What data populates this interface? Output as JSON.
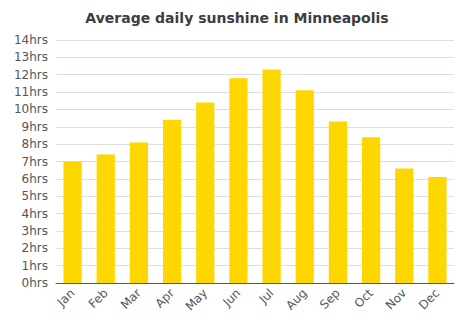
{
  "chart_data": {
    "type": "bar",
    "title": "Average daily sunshine in Minneapolis",
    "categories": [
      "Jan",
      "Feb",
      "Mar",
      "Apr",
      "May",
      "Jun",
      "Jul",
      "Aug",
      "Sep",
      "Oct",
      "Nov",
      "Dec"
    ],
    "values": [
      7.0,
      7.4,
      8.1,
      9.4,
      10.4,
      11.8,
      12.3,
      11.1,
      9.3,
      8.4,
      6.6,
      6.1
    ],
    "color": "#FFD700",
    "ylim": [
      0,
      14
    ],
    "yticks": [
      {
        "value": 0,
        "label": "0hrs"
      },
      {
        "value": 1,
        "label": "1hrs"
      },
      {
        "value": 2,
        "label": "2hrs"
      },
      {
        "value": 3,
        "label": "3hrs"
      },
      {
        "value": 4,
        "label": "4hrs"
      },
      {
        "value": 5,
        "label": "5hrs"
      },
      {
        "value": 6,
        "label": "6hrs"
      },
      {
        "value": 7,
        "label": "7hrs"
      },
      {
        "value": 8,
        "label": "8hrs"
      },
      {
        "value": 9,
        "label": "9hrs"
      },
      {
        "value": 10,
        "label": "10hrs"
      },
      {
        "value": 11,
        "label": "11hrs"
      },
      {
        "value": 12,
        "label": "12hrs"
      },
      {
        "value": 13,
        "label": "13hrs"
      },
      {
        "value": 14,
        "label": "14hrs"
      }
    ],
    "grid": true
  }
}
